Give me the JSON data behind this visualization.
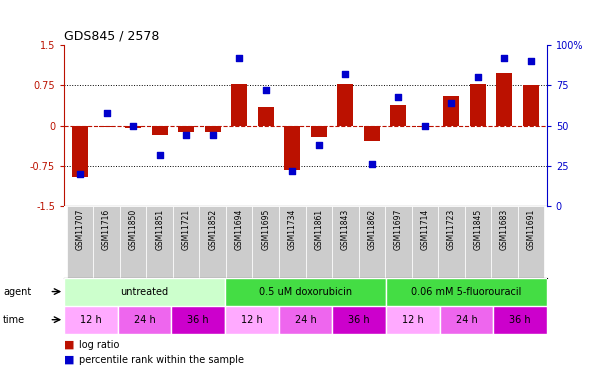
{
  "title": "GDS845 / 2578",
  "samples": [
    "GSM11707",
    "GSM11716",
    "GSM11850",
    "GSM11851",
    "GSM11721",
    "GSM11852",
    "GSM11694",
    "GSM11695",
    "GSM11734",
    "GSM11861",
    "GSM11843",
    "GSM11862",
    "GSM11697",
    "GSM11714",
    "GSM11723",
    "GSM11845",
    "GSM11683",
    "GSM11691"
  ],
  "log_ratio": [
    -0.95,
    -0.02,
    -0.05,
    -0.18,
    -0.12,
    -0.12,
    0.78,
    0.35,
    -0.82,
    -0.22,
    0.78,
    -0.28,
    0.38,
    -0.02,
    0.55,
    0.78,
    0.98,
    0.75
  ],
  "percentile": [
    20,
    58,
    50,
    32,
    44,
    44,
    92,
    72,
    22,
    38,
    82,
    26,
    68,
    50,
    64,
    80,
    92,
    90
  ],
  "agents": [
    {
      "label": "untreated",
      "start": 0,
      "end": 6,
      "color": "#d4f5c0"
    },
    {
      "label": "0.5 uM doxorubicin",
      "start": 6,
      "end": 12,
      "color": "#44dd44"
    },
    {
      "label": "0.06 mM 5-fluorouracil",
      "start": 12,
      "end": 18,
      "color": "#44dd44"
    }
  ],
  "times": [
    {
      "label": "12 h",
      "start": 0,
      "end": 2,
      "color": "#ffaaff"
    },
    {
      "label": "24 h",
      "start": 2,
      "end": 4,
      "color": "#ee66ee"
    },
    {
      "label": "36 h",
      "start": 4,
      "end": 6,
      "color": "#cc00cc"
    },
    {
      "label": "12 h",
      "start": 6,
      "end": 8,
      "color": "#ffaaff"
    },
    {
      "label": "24 h",
      "start": 8,
      "end": 10,
      "color": "#ee66ee"
    },
    {
      "label": "36 h",
      "start": 10,
      "end": 12,
      "color": "#cc00cc"
    },
    {
      "label": "12 h",
      "start": 12,
      "end": 14,
      "color": "#ffaaff"
    },
    {
      "label": "24 h",
      "start": 14,
      "end": 16,
      "color": "#ee66ee"
    },
    {
      "label": "36 h",
      "start": 16,
      "end": 18,
      "color": "#cc00cc"
    }
  ],
  "bar_color": "#bb1100",
  "dot_color": "#0000cc",
  "ylim_left": [
    -1.5,
    1.5
  ],
  "ylim_right": [
    0,
    100
  ],
  "yticks_left": [
    -1.5,
    -0.75,
    0.0,
    0.75,
    1.5
  ],
  "ytick_labels_left": [
    "-1.5",
    "-0.75",
    "0",
    "0.75",
    "1.5"
  ],
  "yticks_right": [
    0,
    25,
    50,
    75,
    100
  ],
  "ytick_labels_right": [
    "0",
    "25",
    "50",
    "75",
    "100%"
  ],
  "hlines_dotted": [
    0.75,
    -0.75
  ],
  "hline_red_dashed": 0.0,
  "sample_bg": "#cccccc",
  "legend_bar_label": "log ratio",
  "legend_dot_label": "percentile rank within the sample"
}
